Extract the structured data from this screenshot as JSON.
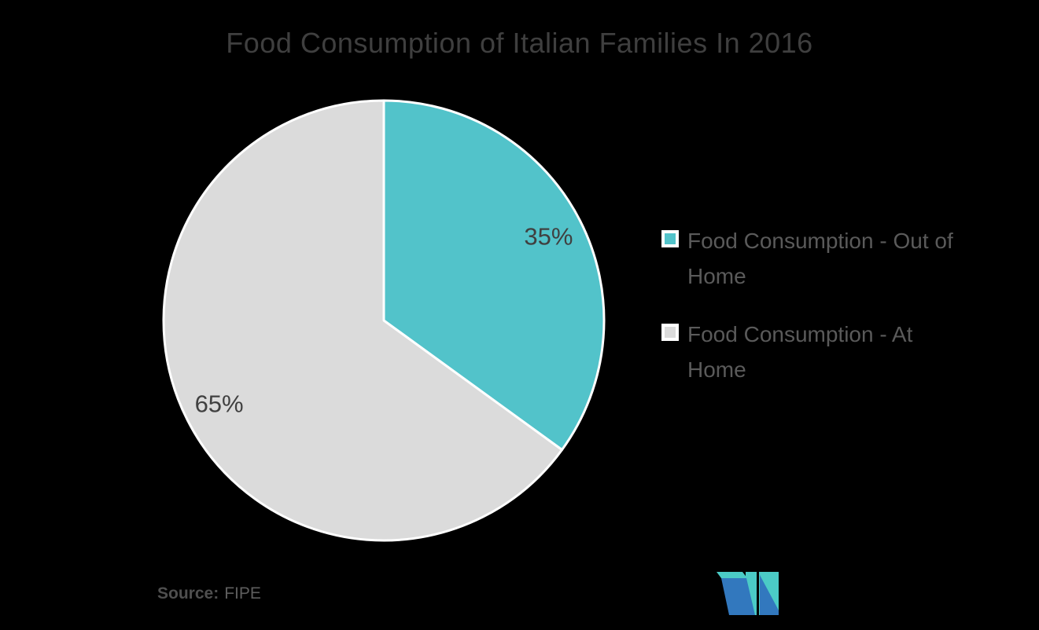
{
  "chart_data": {
    "type": "pie",
    "title": "Food Consumption of Italian Families In 2016",
    "slices": [
      {
        "label": "Food Consumption - Out of Home",
        "value": 35,
        "display_label": "35%",
        "color": "#52C3CA"
      },
      {
        "label": "Food Consumption - At Home",
        "value": 65,
        "display_label": "65%",
        "color": "#DBDBDB"
      }
    ],
    "start_angle_deg": 0,
    "direction": "clockwise",
    "slice_border_color": "#FFFFFF",
    "legend_position": "right",
    "background": "#000000"
  },
  "footer": {
    "source_label": "Source:",
    "source_value": "FIPE"
  },
  "logo": {
    "name": "Mordor Intelligence logo",
    "teal": "#4BCBC6",
    "blue": "#3278BE"
  },
  "colors": {
    "title_text": "#3F3F3F",
    "legend_text": "#5A5A5A",
    "slice_label_text": "#404040"
  }
}
